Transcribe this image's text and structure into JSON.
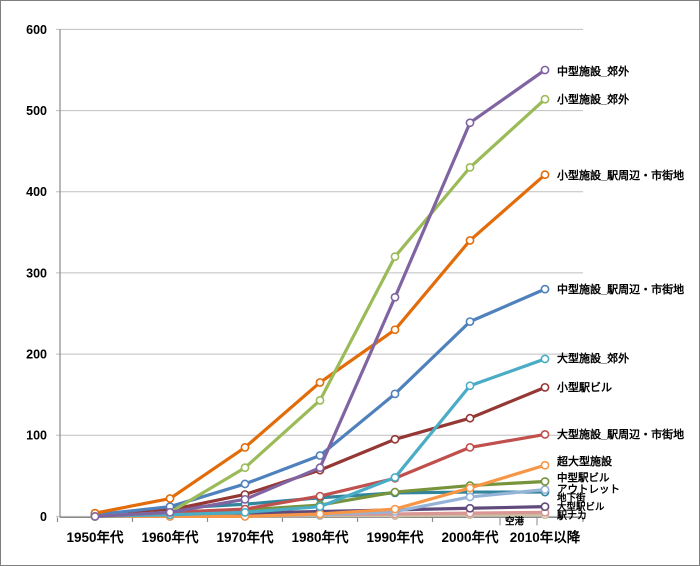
{
  "chart_data": {
    "type": "line",
    "title": "",
    "xlabel": "",
    "ylabel": "",
    "grid": true,
    "legend_position": "data-labels-right-of-last-point",
    "marker_style": "open-circle",
    "ylim": [
      0,
      600
    ],
    "y_tick_step": 100,
    "y_tick_labels": [
      "0",
      "100",
      "200",
      "300",
      "400",
      "500",
      "600"
    ],
    "categories": [
      "1950年代",
      "1960年代",
      "1970年代",
      "1980年代",
      "1990年代",
      "2000年代",
      "2010年以降"
    ],
    "series": [
      {
        "name": "中型施設_郊外",
        "color": "#8064A2",
        "values": [
          0,
          5,
          21,
          60,
          270,
          485,
          550
        ]
      },
      {
        "name": "小型施設_郊外",
        "color": "#9BBB59",
        "values": [
          0,
          5,
          60,
          143,
          320,
          430,
          514
        ]
      },
      {
        "name": "小型施設_駅周辺・市街地",
        "color": "#E36C0A",
        "values": [
          4,
          22,
          85,
          165,
          230,
          340,
          421
        ]
      },
      {
        "name": "中型施設_駅周辺・市街地",
        "color": "#4F81BD",
        "values": [
          2,
          12,
          40,
          75,
          151,
          240,
          280
        ]
      },
      {
        "name": "大型施設_郊外",
        "color": "#4BACC6",
        "values": [
          0,
          2,
          5,
          12,
          48,
          161,
          194
        ]
      },
      {
        "name": "小型駅ビル",
        "color": "#953735",
        "values": [
          2,
          8,
          27,
          57,
          95,
          121,
          159
        ]
      },
      {
        "name": "大型施設_駅周辺・市街地",
        "color": "#C0504D",
        "values": [
          1,
          5,
          9,
          25,
          47,
          85,
          101
        ]
      },
      {
        "name": "超大型施設",
        "color": "#F79646",
        "values": [
          0,
          0,
          0,
          3,
          9,
          35,
          63
        ]
      },
      {
        "name": "中型駅ビル",
        "color": "#77933C",
        "values": [
          0,
          2,
          8,
          14,
          30,
          38,
          43
        ]
      },
      {
        "name": "アウトレット",
        "color": "#95B3D7",
        "values": [
          0,
          0,
          0,
          2,
          6,
          24,
          33
        ]
      },
      {
        "name": "地下街",
        "color": "#31859C",
        "values": [
          1,
          10,
          15,
          23,
          29,
          30,
          30
        ]
      },
      {
        "name": "大型駅ビル",
        "color": "#604A7B",
        "values": [
          0,
          2,
          4,
          6,
          8,
          10,
          12
        ]
      },
      {
        "name": "駅ナカ",
        "color": "#D99694",
        "values": [
          0,
          0,
          1,
          2,
          3,
          4,
          5
        ]
      },
      {
        "name": "空港",
        "color": "#CCC1A2",
        "values": [
          0,
          0,
          0,
          1,
          1,
          2,
          2
        ]
      }
    ]
  },
  "colors": {
    "gridline": "#BFBFBF",
    "axis": "#898989",
    "label_text": "#000000",
    "outer_border": "#7F7F7F"
  }
}
